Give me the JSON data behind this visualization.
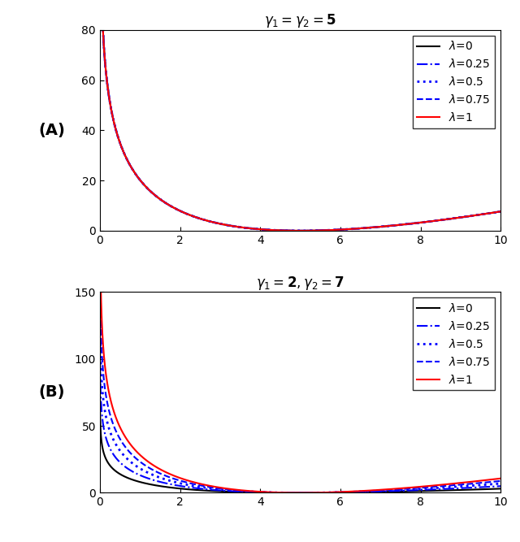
{
  "panel_A": {
    "title": "$\\gamma_1 = \\gamma_2 = \\mathbf{5}$",
    "gamma1": 5,
    "gamma2": 5,
    "mu1": 5,
    "mu2": 5,
    "ylim": [
      0,
      80
    ],
    "yticks": [
      0,
      20,
      40,
      60,
      80
    ]
  },
  "panel_B": {
    "title": "$\\gamma_1 = \\mathbf{2}, \\gamma_2 = \\mathbf{7}$",
    "gamma1": 2,
    "gamma2": 7,
    "mu1": 5,
    "mu2": 5,
    "ylim": [
      0,
      150
    ],
    "yticks": [
      0,
      50,
      100,
      150
    ]
  },
  "lambdas": [
    0,
    0.25,
    0.5,
    0.75,
    1.0
  ],
  "lambda_labels": [
    "$\\lambda$=0",
    "$\\lambda$=0.25",
    "$\\lambda$=0.5",
    "$\\lambda$=0.75",
    "$\\lambda$=1"
  ],
  "line_styles": [
    {
      "color": "black",
      "linestyle": "-",
      "linewidth": 1.5
    },
    {
      "color": "blue",
      "linestyle": "-.",
      "linewidth": 1.5
    },
    {
      "color": "blue",
      "linestyle": ":",
      "linewidth": 2.0
    },
    {
      "color": "blue",
      "linestyle": "--",
      "linewidth": 1.5
    },
    {
      "color": "red",
      "linestyle": "-",
      "linewidth": 1.5
    }
  ],
  "xrange": [
    0,
    10
  ],
  "panel_labels": [
    "(A)",
    "(B)"
  ],
  "background_color": "#ffffff"
}
